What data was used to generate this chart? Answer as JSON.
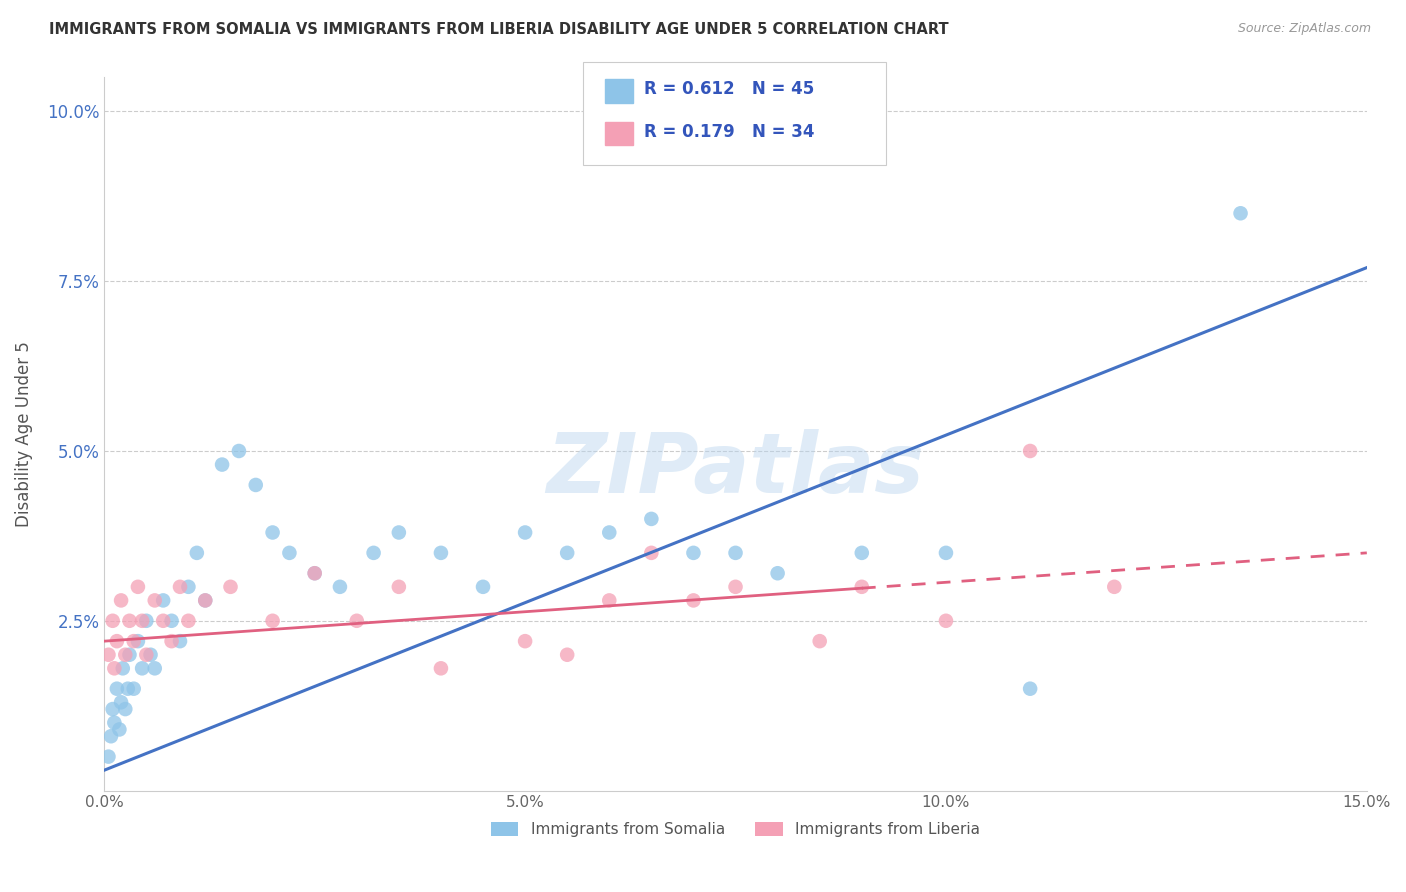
{
  "title": "IMMIGRANTS FROM SOMALIA VS IMMIGRANTS FROM LIBERIA DISABILITY AGE UNDER 5 CORRELATION CHART",
  "source": "Source: ZipAtlas.com",
  "ylabel": "Disability Age Under 5",
  "xlim": [
    0.0,
    15.0
  ],
  "ylim": [
    0.0,
    10.5
  ],
  "yticks": [
    2.5,
    5.0,
    7.5,
    10.0
  ],
  "xticks": [
    0,
    5,
    10,
    15
  ],
  "R_somalia": 0.612,
  "N_somalia": 45,
  "R_liberia": 0.179,
  "N_liberia": 34,
  "color_somalia": "#8ec4e8",
  "color_liberia": "#f4a0b5",
  "color_somalia_line": "#4472c4",
  "color_liberia_line": "#e06080",
  "legend_label_somalia": "Immigrants from Somalia",
  "legend_label_liberia": "Immigrants from Liberia",
  "watermark": "ZIPatlas",
  "background_color": "#ffffff",
  "grid_color": "#cccccc",
  "somalia_x": [
    0.05,
    0.08,
    0.1,
    0.12,
    0.15,
    0.18,
    0.2,
    0.22,
    0.25,
    0.28,
    0.3,
    0.35,
    0.4,
    0.45,
    0.5,
    0.55,
    0.6,
    0.7,
    0.8,
    0.9,
    1.0,
    1.1,
    1.2,
    1.4,
    1.6,
    1.8,
    2.0,
    2.2,
    2.5,
    2.8,
    3.2,
    3.5,
    4.0,
    4.5,
    5.0,
    5.5,
    6.0,
    6.5,
    7.0,
    7.5,
    8.0,
    9.0,
    10.0,
    11.0,
    13.5
  ],
  "somalia_y": [
    0.5,
    0.8,
    1.2,
    1.0,
    1.5,
    0.9,
    1.3,
    1.8,
    1.2,
    1.5,
    2.0,
    1.5,
    2.2,
    1.8,
    2.5,
    2.0,
    1.8,
    2.8,
    2.5,
    2.2,
    3.0,
    3.5,
    2.8,
    4.8,
    5.0,
    4.5,
    3.8,
    3.5,
    3.2,
    3.0,
    3.5,
    3.8,
    3.5,
    3.0,
    3.8,
    3.5,
    3.8,
    4.0,
    3.5,
    3.5,
    3.2,
    3.5,
    3.5,
    1.5,
    8.5
  ],
  "liberia_x": [
    0.05,
    0.1,
    0.12,
    0.15,
    0.2,
    0.25,
    0.3,
    0.35,
    0.4,
    0.45,
    0.5,
    0.6,
    0.7,
    0.8,
    0.9,
    1.0,
    1.2,
    1.5,
    2.0,
    2.5,
    3.0,
    3.5,
    4.0,
    5.0,
    5.5,
    6.0,
    6.5,
    7.0,
    7.5,
    8.5,
    9.0,
    10.0,
    11.0,
    12.0
  ],
  "liberia_y": [
    2.0,
    2.5,
    1.8,
    2.2,
    2.8,
    2.0,
    2.5,
    2.2,
    3.0,
    2.5,
    2.0,
    2.8,
    2.5,
    2.2,
    3.0,
    2.5,
    2.8,
    3.0,
    2.5,
    3.2,
    2.5,
    3.0,
    1.8,
    2.2,
    2.0,
    2.8,
    3.5,
    2.8,
    3.0,
    2.2,
    3.0,
    2.5,
    5.0,
    3.0
  ],
  "somalia_line_x0": 0.0,
  "somalia_line_y0": 0.3,
  "somalia_line_x1": 15.0,
  "somalia_line_y1": 7.7,
  "liberia_line_x0": 0.0,
  "liberia_line_y0": 2.2,
  "liberia_line_x1": 15.0,
  "liberia_line_y1": 3.5
}
